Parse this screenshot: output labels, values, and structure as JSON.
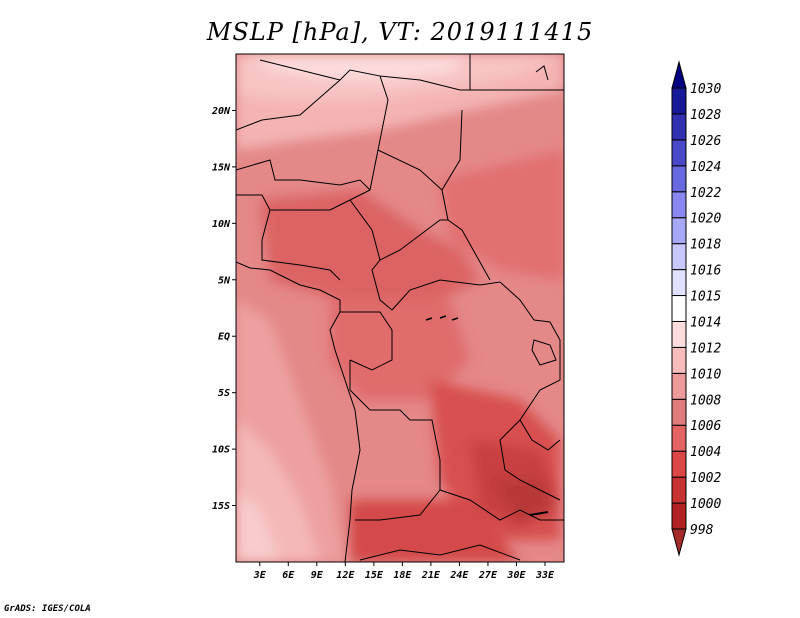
{
  "title": "MSLP [hPa], VT: 2019111415",
  "credit": "GrADS: IGES/COLA",
  "map": {
    "lat_labels": [
      {
        "lat": 20,
        "label": "20N"
      },
      {
        "lat": 15,
        "label": "15N"
      },
      {
        "lat": 10,
        "label": "10N"
      },
      {
        "lat": 5,
        "label": "5N"
      },
      {
        "lat": 0,
        "label": "EQ"
      },
      {
        "lat": -5,
        "label": "5S"
      },
      {
        "lat": -10,
        "label": "10S"
      },
      {
        "lat": -15,
        "label": "15S"
      }
    ],
    "lon_labels": [
      {
        "lon": 3,
        "label": "3E"
      },
      {
        "lon": 6,
        "label": "6E"
      },
      {
        "lon": 9,
        "label": "9E"
      },
      {
        "lon": 12,
        "label": "12E"
      },
      {
        "lon": 15,
        "label": "15E"
      },
      {
        "lon": 18,
        "label": "18E"
      },
      {
        "lon": 21,
        "label": "21E"
      },
      {
        "lon": 24,
        "label": "24E"
      },
      {
        "lon": 27,
        "label": "27E"
      },
      {
        "lon": 30,
        "label": "30E"
      },
      {
        "lon": 33,
        "label": "33E"
      }
    ],
    "lon_range": [
      0.5,
      35
    ],
    "lat_range": [
      -20,
      25
    ]
  },
  "colorbar": {
    "levels": [
      "998",
      "1000",
      "1002",
      "1004",
      "1006",
      "1008",
      "1010",
      "1012",
      "1014",
      "1015",
      "1016",
      "1018",
      "1020",
      "1022",
      "1024",
      "1026",
      "1028",
      "1030"
    ],
    "colors": [
      "#a52a2a",
      "#b22222",
      "#c83232",
      "#dc4646",
      "#e46464",
      "#e07c7c",
      "#ec9a9a",
      "#f8bcbc",
      "#fcdcdc",
      "#ffffff",
      "#e0e0ff",
      "#c8c8ff",
      "#a8a8f8",
      "#8888f0",
      "#6868e0",
      "#4848c8",
      "#3030b0",
      "#18189a",
      "#000080"
    ]
  }
}
